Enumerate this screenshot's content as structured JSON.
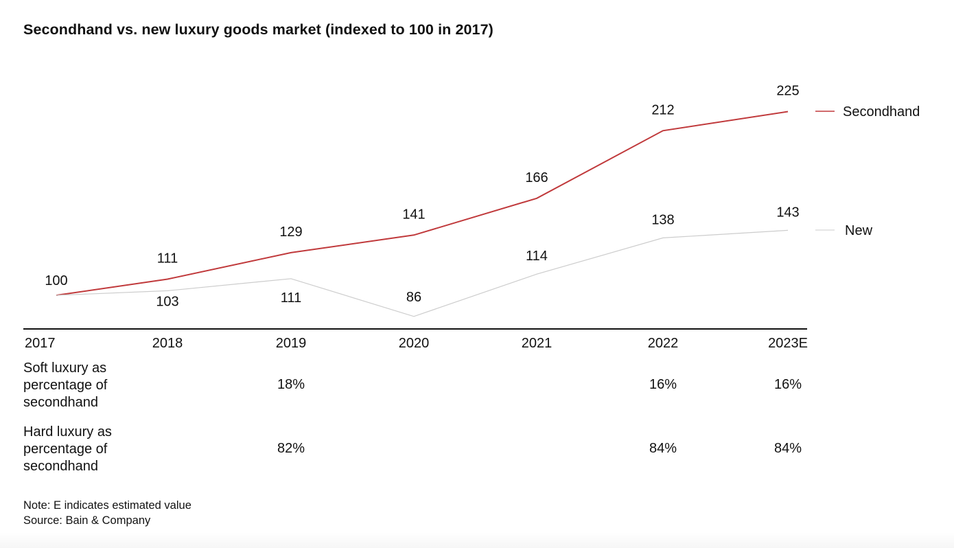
{
  "title": "Secondhand vs. new luxury goods market (indexed to 100 in 2017)",
  "chart_data": {
    "type": "line",
    "title": "Secondhand vs. new luxury goods market (indexed to 100 in 2017)",
    "x": [
      "2017",
      "2018",
      "2019",
      "2020",
      "2021",
      "2022",
      "2023E"
    ],
    "series": [
      {
        "name": "Secondhand",
        "color": "#c0393b",
        "values": [
          100,
          111,
          129,
          141,
          166,
          212,
          225
        ]
      },
      {
        "name": "New",
        "color": "#cccccc",
        "values": [
          100,
          103,
          111,
          86,
          114,
          138,
          143
        ]
      }
    ],
    "xlabel": "",
    "ylabel": "",
    "grid": false,
    "legend": "right",
    "data_labels": true
  },
  "legend": [
    {
      "label": "Secondhand"
    },
    {
      "label": "New"
    }
  ],
  "table": {
    "rows": [
      {
        "label": "Soft luxury as\npercentage of\nsecondhand",
        "values": {
          "2019": "18%",
          "2022": "16%",
          "2023E": "16%"
        }
      },
      {
        "label": "Hard luxury as\npercentage of\nsecondhand",
        "values": {
          "2019": "82%",
          "2022": "84%",
          "2023E": "84%"
        }
      }
    ]
  },
  "notes": {
    "note": "Note: E indicates estimated value",
    "source": "Source: Bain & Company"
  }
}
